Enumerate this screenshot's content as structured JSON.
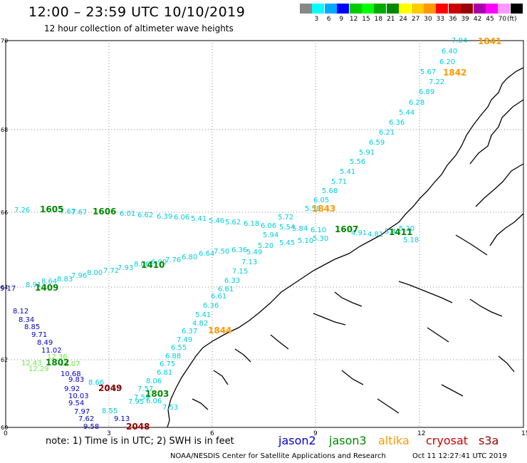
{
  "header": {
    "title": "12:00 – 23:59 UTC 10/10/2019",
    "subtitle": "12 hour collection of altimeter wave heights"
  },
  "legend": {
    "unit": "(ft)",
    "swatches": [
      {
        "color": "#888888",
        "label": ""
      },
      {
        "color": "#00ffff",
        "label": "3"
      },
      {
        "color": "#00aaff",
        "label": "6"
      },
      {
        "color": "#0000ff",
        "label": "9"
      },
      {
        "color": "#00cc00",
        "label": "12"
      },
      {
        "color": "#00ff00",
        "label": "15"
      },
      {
        "color": "#00aa00",
        "label": "18"
      },
      {
        "color": "#008800",
        "label": "21"
      },
      {
        "color": "#ffff00",
        "label": "24"
      },
      {
        "color": "#ffcc00",
        "label": "27"
      },
      {
        "color": "#ff9900",
        "label": "30"
      },
      {
        "color": "#ff0000",
        "label": "33"
      },
      {
        "color": "#cc0000",
        "label": "36"
      },
      {
        "color": "#990000",
        "label": "39"
      },
      {
        "color": "#aa00aa",
        "label": "42"
      },
      {
        "color": "#ff00ff",
        "label": "45"
      },
      {
        "color": "#ff99ff",
        "label": "70"
      },
      {
        "color": "#000000",
        "label": ""
      }
    ]
  },
  "map": {
    "lat_labels": [
      "70",
      "68",
      "66",
      "64",
      "62",
      "60"
    ],
    "lon_labels": [
      "0",
      "3",
      "6",
      "9",
      "12",
      "15"
    ],
    "time_labels": [
      {
        "text": "1841",
        "color": "#ff9900"
      },
      {
        "text": "1842",
        "color": "#ff9900"
      },
      {
        "text": "1843",
        "color": "#ff9900"
      },
      {
        "text": "1844",
        "color": "#ff9900"
      },
      {
        "text": "1605",
        "color": "#008800"
      },
      {
        "text": "1606",
        "color": "#008800"
      },
      {
        "text": "1607",
        "color": "#008800"
      },
      {
        "text": "1411",
        "color": "#008800"
      },
      {
        "text": "1410",
        "color": "#008800"
      },
      {
        "text": "1409",
        "color": "#008800"
      },
      {
        "text": "1802",
        "color": "#008800"
      },
      {
        "text": "1803",
        "color": "#008800"
      },
      {
        "text": "2049",
        "color": "#990000"
      },
      {
        "text": "2048",
        "color": "#990000"
      }
    ],
    "altika_pass": [
      "7.04",
      "6.40",
      "6.20",
      "5.67",
      "7.22",
      "6.89",
      "6.28",
      "5.44",
      "6.36",
      "6.21",
      "6.59",
      "5.91",
      "5.56",
      "5.41",
      "5.71",
      "5.68",
      "6.05",
      "5.58"
    ],
    "altika_pass_south": [
      "6.61",
      "6.36",
      "5.41",
      "4.82",
      "6.37",
      "7.49",
      "6.55",
      "6.88",
      "6.75",
      "6.81",
      "8.06",
      "7.57",
      "7.59"
    ],
    "jason3_upper": [
      "7.26",
      "7.67",
      "7.67",
      "6.01",
      "6.62",
      "6.39",
      "6.06",
      "5.41",
      "5.46",
      "5.62",
      "6.18",
      "6.06",
      "5.54",
      "5.84",
      "6.10",
      "4.91",
      "4.81",
      "5.41",
      "5.20",
      "5.18"
    ],
    "jason3_mid": [
      "5.72",
      "5.94",
      "5.20",
      "5.45",
      "5.10",
      "5.30"
    ],
    "jason3_lower": [
      "8.91",
      "8.64",
      "8.83",
      "7.96",
      "8.00",
      "7.72",
      "7.93",
      "8.06",
      "6.90",
      "7.76",
      "6.80",
      "6.64",
      "7.50",
      "6.36",
      "5.49",
      "7.13",
      "7.15",
      "6.33",
      "6.61"
    ],
    "jason2_south": [
      "8.12",
      "8.34",
      "8.85",
      "9.71",
      "8.49",
      "11.02",
      "10.68",
      "9.83",
      "9.92",
      "10.03",
      "9.54",
      "7.97",
      "7.62",
      "9.58",
      "9.13"
    ],
    "jason3_south": [
      "12.43",
      "12.29",
      "12.36",
      "12.07"
    ],
    "west_edge": "9.17",
    "near_2049": [
      "8.66",
      "7.50",
      "8.55",
      "7.95",
      "6.06",
      "7.53"
    ]
  },
  "footer": {
    "note": "note: 1) Time is in UTC; 2) SWH is in feet",
    "satellites": [
      {
        "name": "jason2",
        "color": "#0000cc"
      },
      {
        "name": "jason3",
        "color": "#008800"
      },
      {
        "name": "altika",
        "color": "#ff9900"
      },
      {
        "name": "cryosat",
        "color": "#cc0000"
      },
      {
        "name": "s3a",
        "color": "#990000"
      }
    ],
    "credit": "NOAA/NESDIS Center for Satellite Applications and Research",
    "timestamp": "Oct 11 12:27:41 UTC 2019"
  }
}
